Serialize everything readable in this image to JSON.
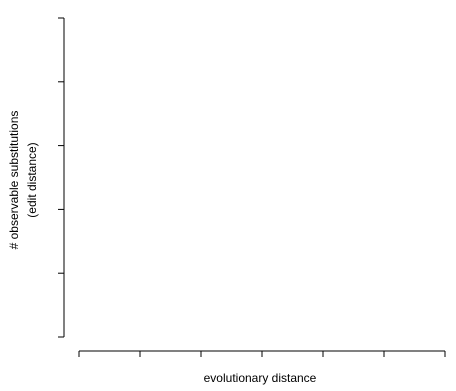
{
  "chart_data": {
    "type": "line",
    "title": "",
    "xlabel": "evolutionary distance",
    "ylabel_line1": "# observable substitutions",
    "ylabel_line2": "(edit distance)",
    "x_ticks": 7,
    "y_ticks": 6,
    "tick_labels_shown": false,
    "grid": false,
    "legend": "none",
    "series": []
  },
  "colors": {
    "axis": "#000000",
    "background": "#ffffff"
  }
}
